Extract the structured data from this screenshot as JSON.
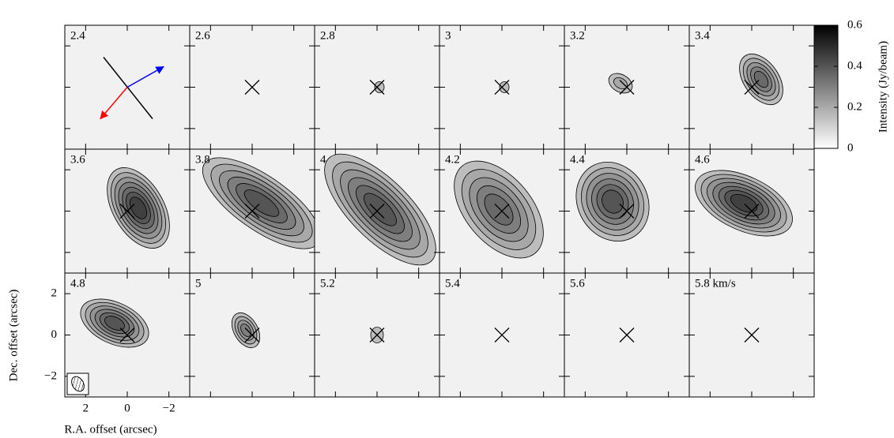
{
  "chart_data": {
    "type": "channel-map",
    "panels": [
      "2.4",
      "2.6",
      "2.8",
      "3",
      "3.2",
      "3.4",
      "3.6",
      "3.8",
      "4",
      "4.2",
      "4.4",
      "4.6",
      "4.8",
      "5",
      "5.2",
      "5.4",
      "5.6",
      "5.8 km/s"
    ],
    "xlabel": "R.A. offset (arcsec)",
    "ylabel": "Dec. offset (arcsec)",
    "xlim": [
      3,
      -3
    ],
    "ylim": [
      -3,
      3
    ],
    "xticks": [
      2,
      0,
      {
        "value": -2,
        "label": "−2"
      }
    ],
    "yticks": [
      {
        "value": -2,
        "label": "−2"
      },
      0,
      2
    ],
    "colorbar": {
      "label": "Intensity (Jy/beam)",
      "lim": [
        0,
        0.6
      ],
      "ticks": [
        0,
        0.2,
        0.4,
        0.6
      ]
    }
  }
}
